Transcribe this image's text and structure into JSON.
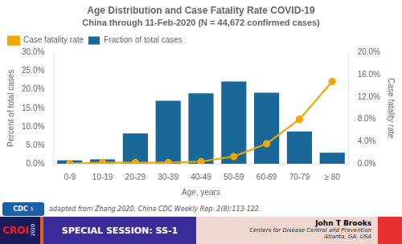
{
  "chart_data": {
    "type": "bar",
    "title": "Age Distribution and Case Fatality Rate COVID-19",
    "subtitle": "China through 11-Feb-2020 (N = 44,672 confirmed cases)",
    "categories": [
      "0-9",
      "10-19",
      "20-29",
      "30-39",
      "40-49",
      "50-59",
      "60-69",
      "70-79",
      "≥ 80"
    ],
    "series": [
      {
        "name": "Fraction of total cases",
        "type": "bar",
        "color": "#1a6898",
        "values": [
          0.009,
          0.012,
          0.082,
          0.17,
          0.19,
          0.222,
          0.192,
          0.087,
          0.03
        ]
      },
      {
        "name": "Case fatality rate",
        "type": "line",
        "axis": "y2",
        "color": "#f0a800",
        "marker": "circle",
        "values": [
          0.0002,
          0.002,
          0.002,
          0.002,
          0.004,
          0.013,
          0.036,
          0.08,
          0.148
        ]
      }
    ],
    "xlabel": "Age, years",
    "ylabel": "Percent of total cases",
    "y2label": "Case fatality rate",
    "ylim": [
      0,
      0.3
    ],
    "yticks": [
      {
        "value": 0.0,
        "label": "0.0%"
      },
      {
        "value": 0.05,
        "label": "5.0%"
      },
      {
        "value": 0.1,
        "label": "10.0%"
      },
      {
        "value": 0.15,
        "label": "15.0%"
      },
      {
        "value": 0.2,
        "label": "20.0%"
      },
      {
        "value": 0.25,
        "label": "25.0%"
      },
      {
        "value": 0.3,
        "label": "30.0%"
      }
    ],
    "y2lim": [
      0,
      0.2
    ],
    "y2ticks": [
      {
        "value": 0.0,
        "label": "0.0%"
      },
      {
        "value": 0.04,
        "label": "4.0%"
      },
      {
        "value": 0.08,
        "label": "8.0%"
      },
      {
        "value": 0.12,
        "label": "12.0%"
      },
      {
        "value": 0.16,
        "label": "16.0%"
      },
      {
        "value": 0.2,
        "label": "20.0%"
      }
    ],
    "grid": false,
    "legend": "upper left",
    "annotations": [
      "CDC",
      "⚕",
      "adapted from Zhang 2020. China CDC Weekly Rep. 2(8):113-122.",
      "CROI",
      "2020",
      "SPECIAL SESSION: SS-1",
      "John T Brooks",
      "Centers for Disease Control and Prevention",
      "Atlanta, GA, USA"
    ]
  }
}
